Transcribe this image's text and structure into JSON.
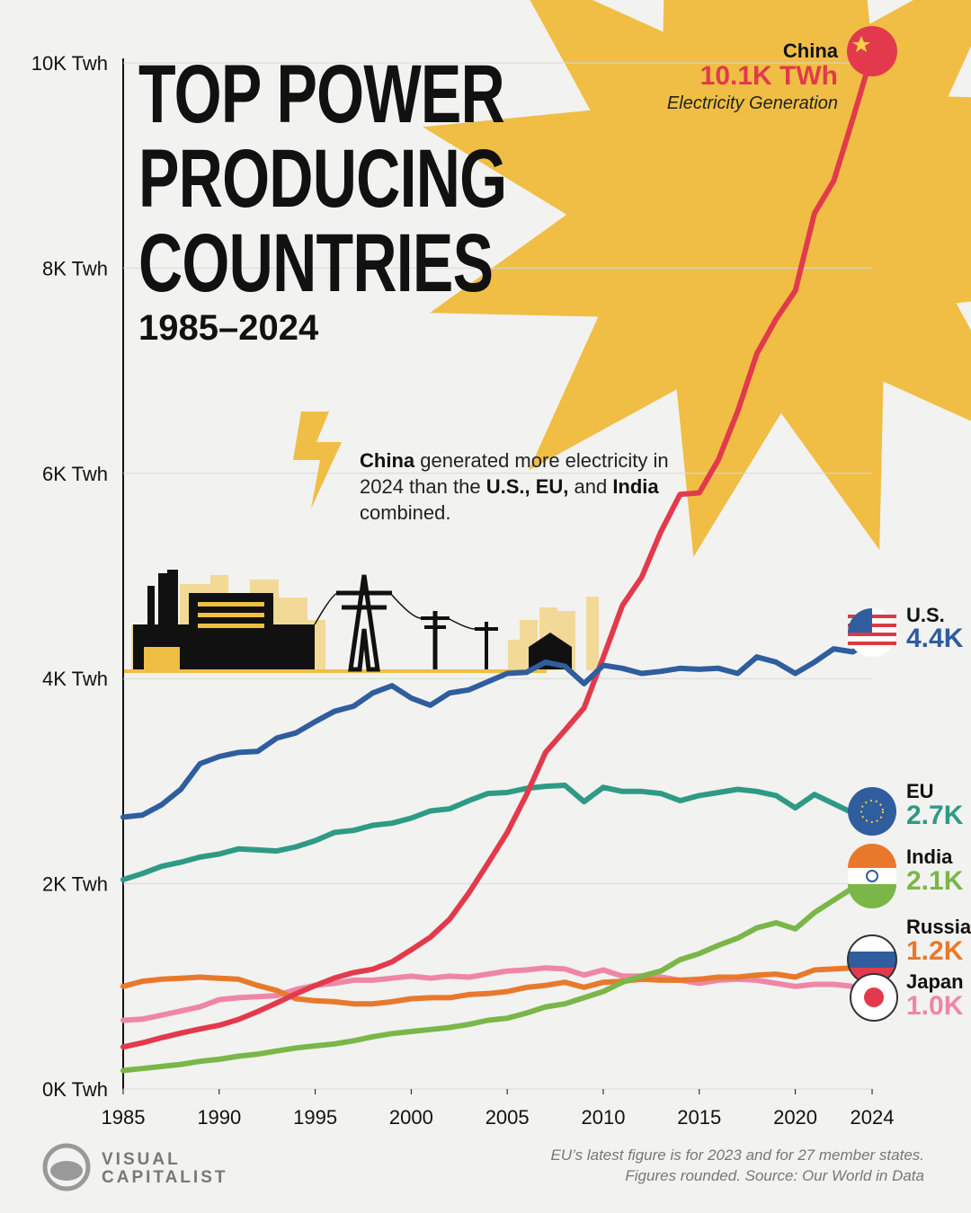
{
  "chart_data": {
    "type": "line",
    "title_lines": [
      "TOP POWER",
      "PRODUCING",
      "COUNTRIES"
    ],
    "subtitle": "1985–2024",
    "annotation": [
      {
        "text": "China",
        "bold": true
      },
      {
        "text": " generated more electricity in 2024 than the "
      },
      {
        "text": "U.S., EU,",
        "bold": true
      },
      {
        "text": " and "
      },
      {
        "text": "India",
        "bold": true
      },
      {
        "text": " combined."
      }
    ],
    "metric_label": "Electricity Generation",
    "footnotes": [
      "EU’s latest figure is for 2023 and for 27 member states.",
      "Figures rounded. Source: Our World in Data"
    ],
    "brand": [
      "VISUAL",
      "CAPITALIST"
    ],
    "x": [
      1985,
      1986,
      1987,
      1988,
      1989,
      1990,
      1991,
      1992,
      1993,
      1994,
      1995,
      1996,
      1997,
      1998,
      1999,
      2000,
      2001,
      2002,
      2003,
      2004,
      2005,
      2006,
      2007,
      2008,
      2009,
      2010,
      2011,
      2012,
      2013,
      2014,
      2015,
      2016,
      2017,
      2018,
      2019,
      2020,
      2021,
      2022,
      2023,
      2024
    ],
    "xlim": [
      1985,
      2024
    ],
    "xticks": [
      1985,
      1990,
      1995,
      2000,
      2005,
      2010,
      2015,
      2020,
      2024
    ],
    "ylim": [
      0,
      10000
    ],
    "yticks": [
      {
        "value": 0,
        "label": "0K Twh"
      },
      {
        "value": 2000,
        "label": "2K Twh"
      },
      {
        "value": 4000,
        "label": "4K Twh"
      },
      {
        "value": 6000,
        "label": "6K Twh"
      },
      {
        "value": 8000,
        "label": "8K Twh"
      },
      {
        "value": 10000,
        "label": "10K Twh"
      }
    ],
    "grid": true,
    "series": [
      {
        "name": "China",
        "color": "#e23a4c",
        "end_label": "10.1K TWh",
        "values": [
          410,
          450,
          500,
          545,
          585,
          621,
          678,
          754,
          840,
          928,
          1008,
          1081,
          1135,
          1167,
          1239,
          1356,
          1480,
          1654,
          1911,
          2200,
          2500,
          2866,
          3282,
          3496,
          3714,
          4207,
          4713,
          4988,
          5432,
          5795,
          5810,
          6133,
          6604,
          7166,
          7503,
          7779,
          8534,
          8849,
          9456,
          10087
        ]
      },
      {
        "name": "U.S.",
        "color": "#2f5d9e",
        "end_label": "4.4K",
        "values": [
          2650,
          2670,
          2770,
          2920,
          3170,
          3240,
          3280,
          3290,
          3420,
          3470,
          3580,
          3680,
          3730,
          3860,
          3930,
          3810,
          3740,
          3860,
          3890,
          3970,
          4050,
          4060,
          4160,
          4120,
          3950,
          4130,
          4100,
          4050,
          4070,
          4100,
          4090,
          4100,
          4050,
          4210,
          4160,
          4050,
          4160,
          4290,
          4260,
          4380
        ]
      },
      {
        "name": "EU",
        "color": "#2e9a85",
        "end_label": "2.7K",
        "values": [
          2040,
          2100,
          2170,
          2210,
          2260,
          2290,
          2340,
          2330,
          2320,
          2360,
          2420,
          2500,
          2520,
          2570,
          2590,
          2640,
          2710,
          2730,
          2810,
          2880,
          2890,
          2930,
          2950,
          2960,
          2800,
          2940,
          2900,
          2900,
          2880,
          2810,
          2860,
          2890,
          2920,
          2900,
          2860,
          2740,
          2870,
          2780,
          2690,
          null
        ]
      },
      {
        "name": "India",
        "color": "#7ab648",
        "end_label": "2.1K",
        "values": [
          180,
          200,
          220,
          240,
          270,
          290,
          320,
          340,
          370,
          400,
          420,
          440,
          470,
          510,
          540,
          560,
          580,
          600,
          630,
          670,
          690,
          740,
          800,
          830,
          890,
          950,
          1040,
          1100,
          1150,
          1260,
          1320,
          1400,
          1470,
          1570,
          1620,
          1560,
          1720,
          1840,
          1960,
          2060
        ]
      },
      {
        "name": "Russia",
        "color": "#e8792c",
        "end_label": "1.2K",
        "values": [
          1000,
          1050,
          1070,
          1080,
          1090,
          1080,
          1070,
          1010,
          960,
          880,
          860,
          850,
          830,
          830,
          850,
          880,
          890,
          890,
          920,
          930,
          950,
          990,
          1010,
          1040,
          990,
          1040,
          1050,
          1070,
          1060,
          1060,
          1070,
          1090,
          1090,
          1110,
          1120,
          1090,
          1160,
          1170,
          1180,
          1200
        ]
      },
      {
        "name": "Japan",
        "color": "#ee86a8",
        "end_label": "1.0K",
        "values": [
          670,
          680,
          720,
          760,
          800,
          870,
          890,
          900,
          910,
          970,
          1010,
          1030,
          1060,
          1060,
          1080,
          1100,
          1080,
          1100,
          1090,
          1120,
          1150,
          1160,
          1180,
          1170,
          1110,
          1160,
          1100,
          1100,
          1090,
          1060,
          1030,
          1060,
          1070,
          1060,
          1030,
          1000,
          1020,
          1020,
          1000,
          1010
        ]
      }
    ]
  }
}
